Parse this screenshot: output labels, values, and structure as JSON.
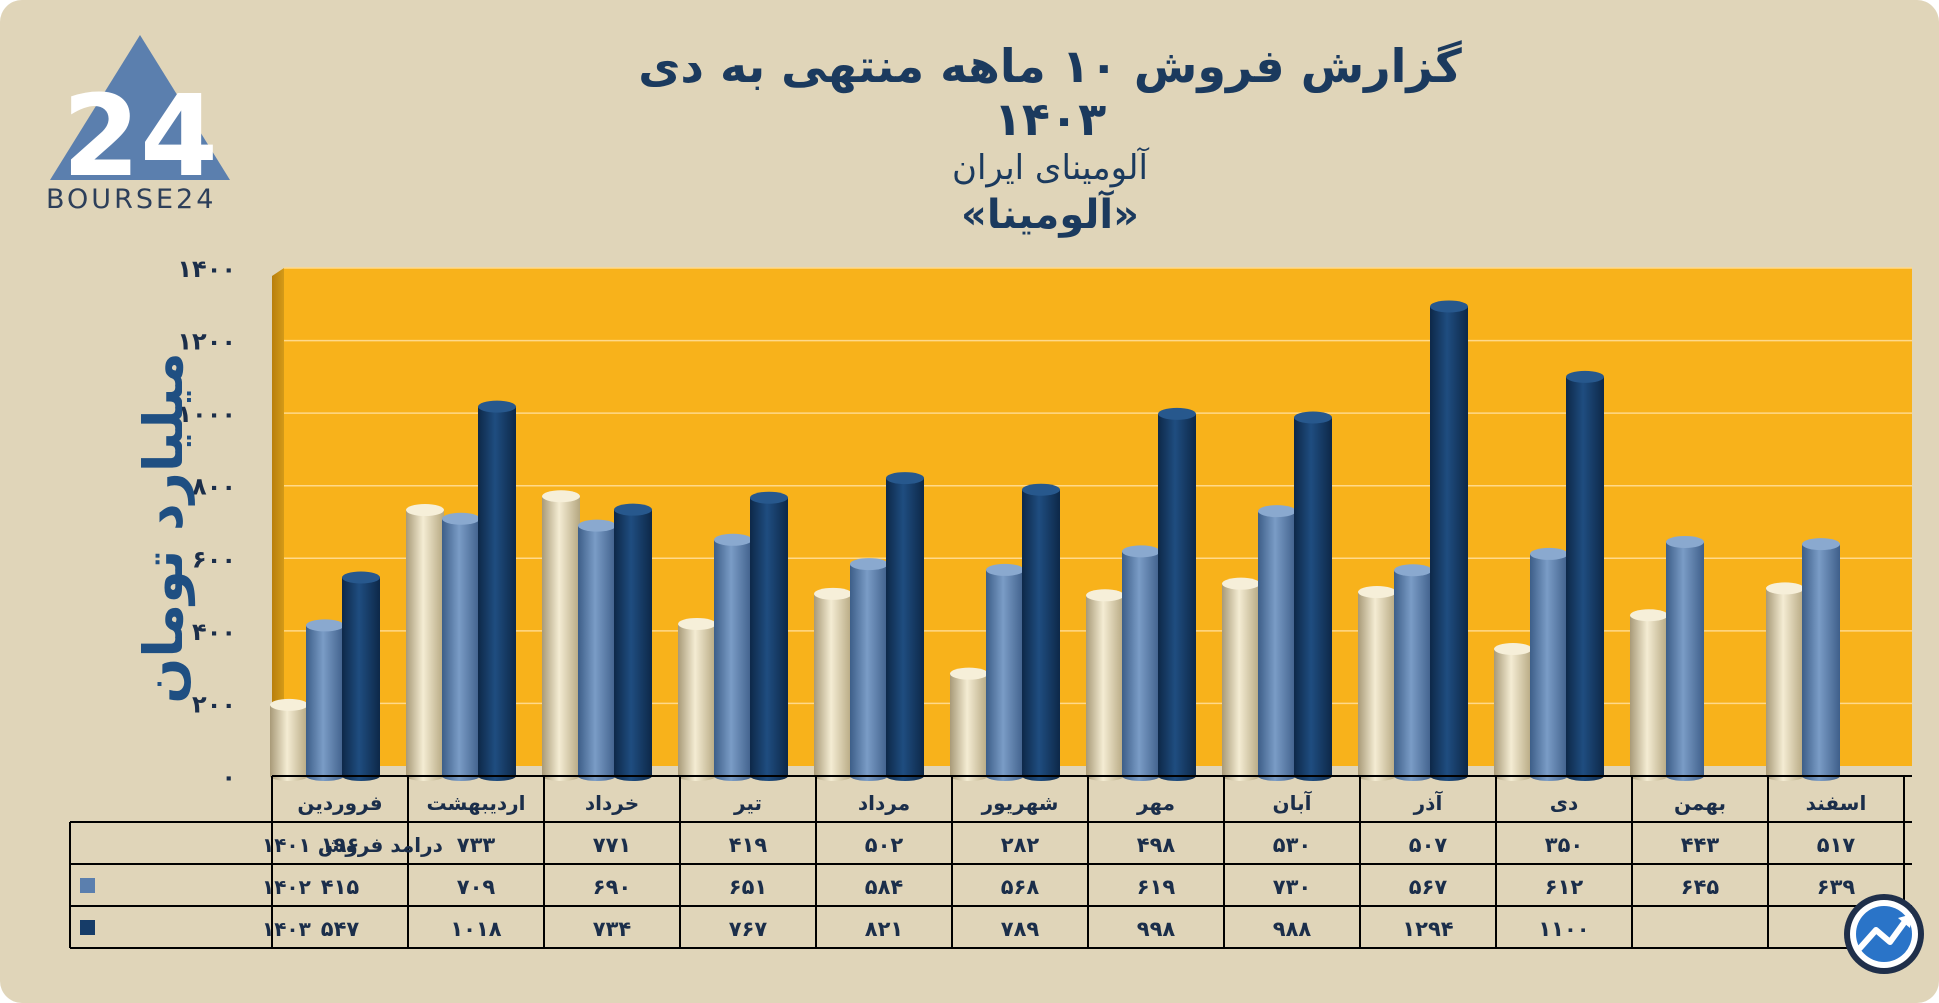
{
  "header": {
    "title": "گزارش  فروش ۱۰ ماهه منتهی به دی ۱۴۰۳",
    "subtitle": "آلومینای ایران",
    "ticker": "«آلومینا»"
  },
  "logo": {
    "text": "BOURSE24",
    "mark": "24",
    "icon": "bourse24-triangle-icon"
  },
  "badge": {
    "icon": "chart-trend-badge-icon"
  },
  "colors": {
    "background": "#e0d5b9",
    "plot": "#f8b21b",
    "series_1401": "#e7dcbd",
    "series_1402": "#5b7fae",
    "series_1403": "#163c68",
    "text": "#1b3a5e"
  },
  "chart_data": {
    "type": "bar",
    "title": "گزارش  فروش ۱۰ ماهه منتهی به دی ۱۴۰۳",
    "subtitle": "آلومینای ایران «آلومینا»",
    "ylabel": "میلیارد تومان",
    "xlabel": "",
    "ylim": [
      0,
      1400
    ],
    "yticks": [
      0,
      200,
      400,
      600,
      800,
      1000,
      1200,
      1400
    ],
    "ytick_labels": [
      "۰",
      "۲۰۰",
      "۴۰۰",
      "۶۰۰",
      "۸۰۰",
      "۱۰۰۰",
      "۱۲۰۰",
      "۱۴۰۰"
    ],
    "grid": true,
    "categories": [
      "فروردین",
      "اردیبهشت",
      "خرداد",
      "تیر",
      "مرداد",
      "شهریور",
      "مهر",
      "آبان",
      "آذر",
      "دی",
      "بهمن",
      "اسفند"
    ],
    "series": [
      {
        "name": "درامد فروش ۱۴۰۱",
        "values": [
          196,
          733,
          771,
          419,
          502,
          282,
          498,
          530,
          507,
          350,
          443,
          517
        ],
        "labels": [
          "۱۹۶",
          "۷۳۳",
          "۷۷۱",
          "۴۱۹",
          "۵۰۲",
          "۲۸۲",
          "۴۹۸",
          "۵۳۰",
          "۵۰۷",
          "۳۵۰",
          "۴۴۳",
          "۵۱۷"
        ]
      },
      {
        "name": "۱۴۰۲",
        "values": [
          415,
          709,
          690,
          651,
          584,
          568,
          619,
          730,
          567,
          612,
          645,
          639
        ],
        "labels": [
          "۴۱۵",
          "۷۰۹",
          "۶۹۰",
          "۶۵۱",
          "۵۸۴",
          "۵۶۸",
          "۶۱۹",
          "۷۳۰",
          "۵۶۷",
          "۶۱۲",
          "۶۴۵",
          "۶۳۹"
        ]
      },
      {
        "name": "۱۴۰۳",
        "values": [
          547,
          1018,
          734,
          767,
          821,
          789,
          998,
          988,
          1294,
          1100,
          null,
          null
        ],
        "labels": [
          "۵۴۷",
          "۱۰۱۸",
          "۷۳۴",
          "۷۶۷",
          "۸۲۱",
          "۷۸۹",
          "۹۹۸",
          "۹۸۸",
          "۱۲۹۴",
          "۱۱۰۰",
          "",
          ""
        ]
      }
    ]
  }
}
